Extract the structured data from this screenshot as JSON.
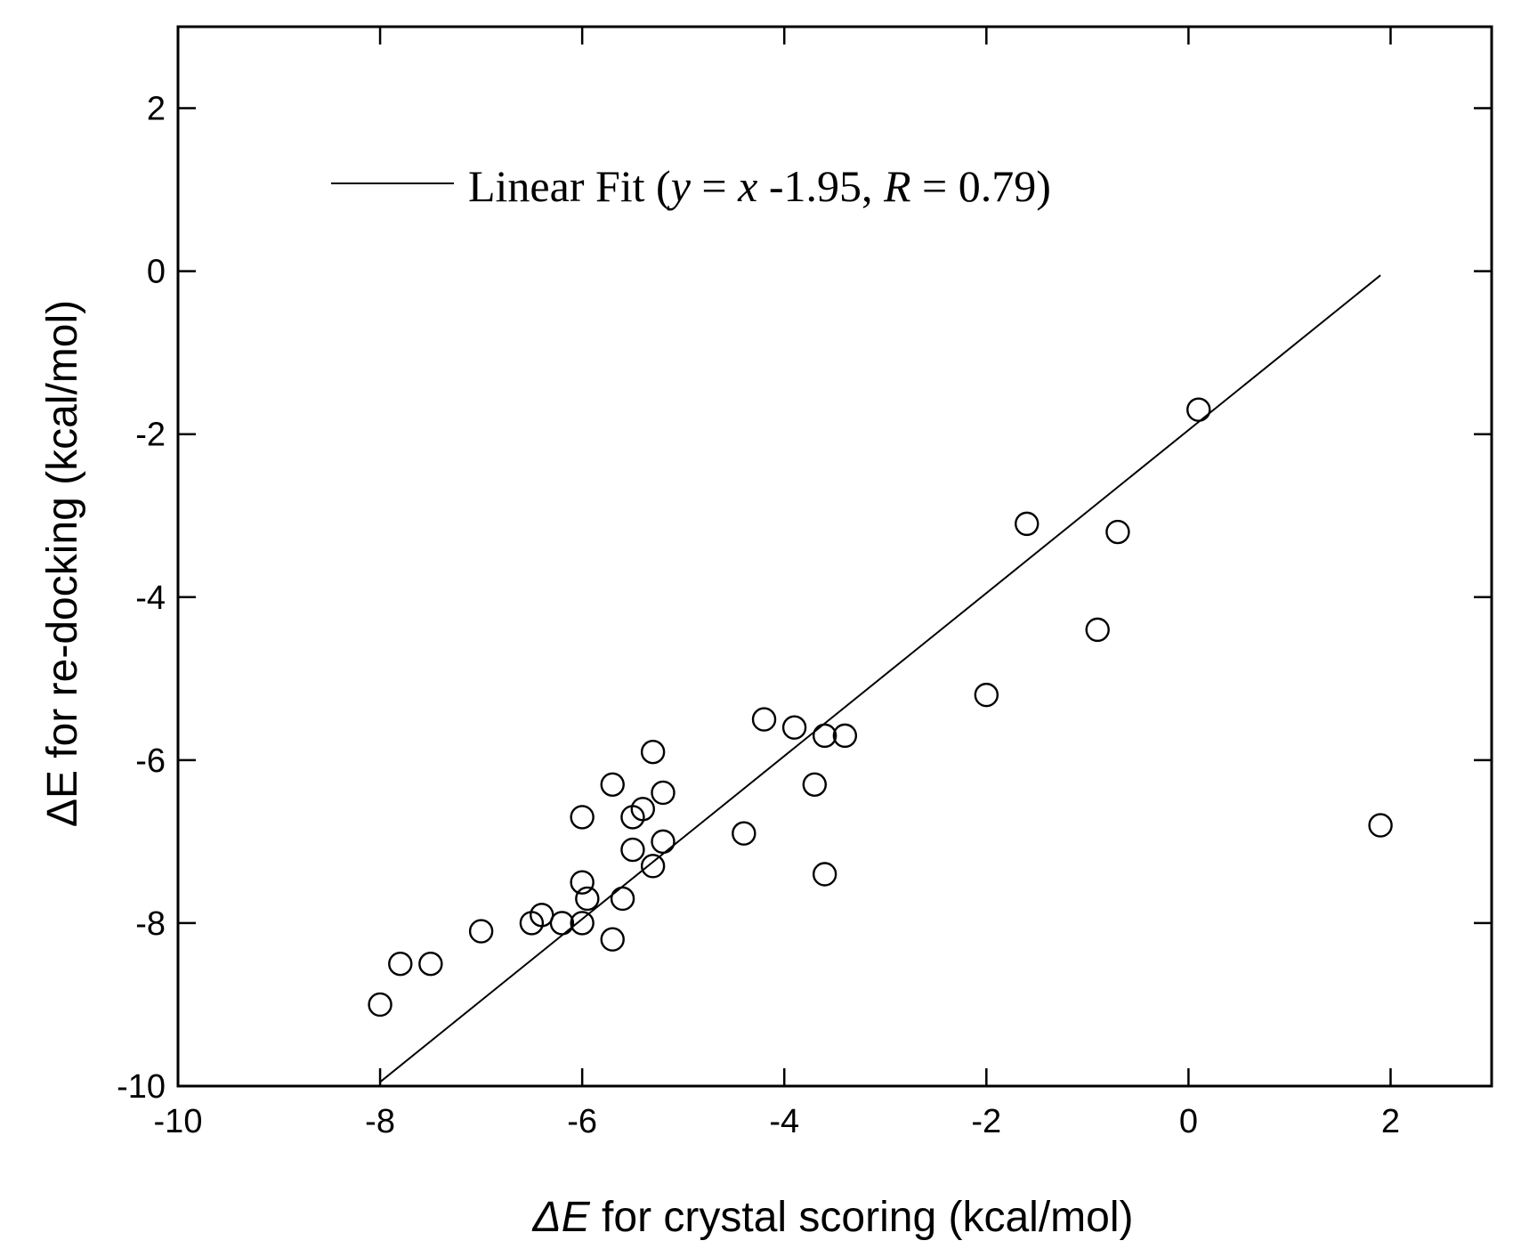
{
  "chart_data": {
    "type": "scatter",
    "xlabel_prefix": "ΔE",
    "xlabel_rest": " for crystal scoring (kcal/mol)",
    "ylabel": "ΔE for re-docking (kcal/mol)",
    "xlim": [
      -10,
      3
    ],
    "ylim": [
      -10,
      3
    ],
    "xticks": [
      -10,
      -8,
      -6,
      -4,
      -2,
      0,
      2
    ],
    "yticks": [
      -10,
      -8,
      -6,
      -4,
      -2,
      0,
      2
    ],
    "xtick_labels": [
      "-10",
      "-8",
      "-6",
      "-4",
      "-2",
      "0",
      "2"
    ],
    "ytick_labels": [
      "-10",
      "-8",
      "-6",
      "-4",
      "-2",
      "0",
      "2"
    ],
    "legend": {
      "placement": "top-left",
      "prefix": "Linear Fit (",
      "y_var": "y",
      "eq_mid": " = ",
      "x_var": "x",
      "eq_rest": " -1.95, ",
      "r_var": "R",
      "r_rest": " = 0.79)"
    },
    "fit": {
      "slope": 1,
      "intercept": -1.95,
      "x_range": [
        -8,
        1.9
      ]
    },
    "points": [
      {
        "x": -8.0,
        "y": -9.0
      },
      {
        "x": -7.8,
        "y": -8.5
      },
      {
        "x": -7.5,
        "y": -8.5
      },
      {
        "x": -7.0,
        "y": -8.1
      },
      {
        "x": -6.5,
        "y": -8.0
      },
      {
        "x": -6.4,
        "y": -7.9
      },
      {
        "x": -6.2,
        "y": -8.0
      },
      {
        "x": -6.0,
        "y": -8.0
      },
      {
        "x": -5.95,
        "y": -7.7
      },
      {
        "x": -6.0,
        "y": -7.5
      },
      {
        "x": -6.0,
        "y": -6.7
      },
      {
        "x": -5.7,
        "y": -8.2
      },
      {
        "x": -5.6,
        "y": -7.7
      },
      {
        "x": -5.7,
        "y": -6.3
      },
      {
        "x": -5.5,
        "y": -6.7
      },
      {
        "x": -5.4,
        "y": -6.6
      },
      {
        "x": -5.5,
        "y": -7.1
      },
      {
        "x": -5.3,
        "y": -7.3
      },
      {
        "x": -5.2,
        "y": -7.0
      },
      {
        "x": -5.2,
        "y": -6.4
      },
      {
        "x": -5.3,
        "y": -5.9
      },
      {
        "x": -4.4,
        "y": -6.9
      },
      {
        "x": -4.2,
        "y": -5.5
      },
      {
        "x": -3.9,
        "y": -5.6
      },
      {
        "x": -3.6,
        "y": -5.7
      },
      {
        "x": -3.4,
        "y": -5.7
      },
      {
        "x": -3.7,
        "y": -6.3
      },
      {
        "x": -3.6,
        "y": -7.4
      },
      {
        "x": -2.0,
        "y": -5.2
      },
      {
        "x": -1.6,
        "y": -3.1
      },
      {
        "x": -0.9,
        "y": -4.4
      },
      {
        "x": -0.7,
        "y": -3.2
      },
      {
        "x": 0.1,
        "y": -1.7
      },
      {
        "x": 1.9,
        "y": -6.8
      }
    ]
  }
}
